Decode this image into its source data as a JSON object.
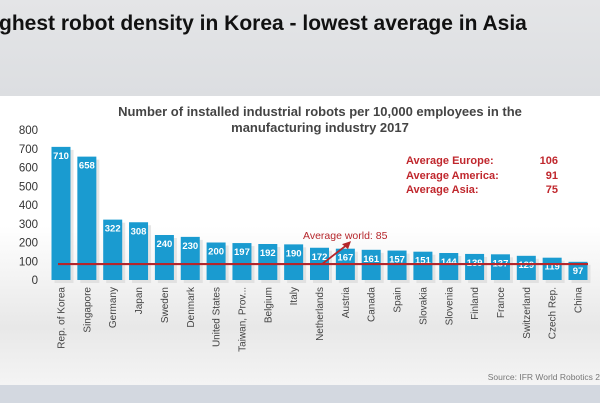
{
  "headline": "ghest robot density in Korea - lowest average in Asia",
  "chart_data": {
    "type": "bar",
    "title": "Number of installed industrial robots per 10,000 employees in the manufacturing industry 2017",
    "title_lines": [
      "Number of installed industrial robots per 10,000 employees in the",
      "manufacturing industry 2017"
    ],
    "categories": [
      "Rep. of Korea",
      "Singapore",
      "Germany",
      "Japan",
      "Sweden",
      "Denmark",
      "United States",
      "Taiwan, Prov...",
      "Belgium",
      "Italy",
      "Netherlands",
      "Austria",
      "Canada",
      "Spain",
      "Slovakia",
      "Slovenia",
      "Finland",
      "France",
      "Switzerland",
      "Czech Rep.",
      "China"
    ],
    "values": [
      710,
      658,
      322,
      308,
      240,
      230,
      200,
      197,
      192,
      190,
      172,
      167,
      161,
      157,
      151,
      144,
      139,
      137,
      129,
      119,
      97
    ],
    "ylim": [
      0,
      800
    ],
    "yticks": [
      0,
      100,
      200,
      300,
      400,
      500,
      600,
      700,
      800
    ],
    "grid": false,
    "bar_color": "#1a9bd0",
    "reference_line": {
      "label": "Average world: 85",
      "value": 85,
      "color": "#b5262b"
    },
    "annotations": [
      {
        "label": "Average Europe:",
        "value": "106"
      },
      {
        "label": "Average America:",
        "value": "91"
      },
      {
        "label": "Average Asia:",
        "value": "75"
      }
    ],
    "annotation_color": "#c0272d"
  },
  "source": "Source: IFR World Robotics 2"
}
